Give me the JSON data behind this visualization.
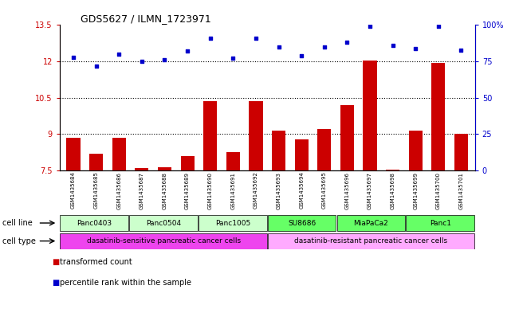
{
  "title": "GDS5627 / ILMN_1723971",
  "samples": [
    "GSM1435684",
    "GSM1435685",
    "GSM1435686",
    "GSM1435687",
    "GSM1435688",
    "GSM1435689",
    "GSM1435690",
    "GSM1435691",
    "GSM1435692",
    "GSM1435693",
    "GSM1435694",
    "GSM1435695",
    "GSM1435696",
    "GSM1435697",
    "GSM1435698",
    "GSM1435699",
    "GSM1435700",
    "GSM1435701"
  ],
  "bar_values": [
    8.85,
    8.2,
    8.85,
    7.6,
    7.65,
    8.1,
    10.35,
    8.25,
    10.35,
    9.15,
    8.8,
    9.2,
    10.2,
    12.05,
    7.55,
    9.15,
    11.95,
    9.0
  ],
  "dot_values": [
    78,
    72,
    80,
    75,
    76,
    82,
    91,
    77,
    91,
    85,
    79,
    85,
    88,
    99,
    86,
    84,
    99,
    83
  ],
  "bar_color": "#cc0000",
  "dot_color": "#0000cc",
  "ylim_left": [
    7.5,
    13.5
  ],
  "ylim_right": [
    0,
    100
  ],
  "yticks_left": [
    7.5,
    9.0,
    10.5,
    12.0,
    13.5
  ],
  "ytick_labels_left": [
    "7.5",
    "9",
    "10.5",
    "12",
    "13.5"
  ],
  "yticks_right": [
    0,
    25,
    50,
    75,
    100
  ],
  "ytick_labels_right": [
    "0",
    "25",
    "50",
    "75",
    "100%"
  ],
  "hlines": [
    9.0,
    10.5,
    12.0
  ],
  "cell_lines": [
    {
      "label": "Panc0403",
      "start": 0,
      "end": 3,
      "color": "#ccffcc"
    },
    {
      "label": "Panc0504",
      "start": 3,
      "end": 6,
      "color": "#ccffcc"
    },
    {
      "label": "Panc1005",
      "start": 6,
      "end": 9,
      "color": "#ccffcc"
    },
    {
      "label": "SU8686",
      "start": 9,
      "end": 12,
      "color": "#66ff66"
    },
    {
      "label": "MiaPaCa2",
      "start": 12,
      "end": 15,
      "color": "#66ff66"
    },
    {
      "label": "Panc1",
      "start": 15,
      "end": 18,
      "color": "#66ff66"
    }
  ],
  "cell_types": [
    {
      "label": "dasatinib-sensitive pancreatic cancer cells",
      "start": 0,
      "end": 9,
      "color": "#ee44ee"
    },
    {
      "label": "dasatinib-resistant pancreatic cancer cells",
      "start": 9,
      "end": 18,
      "color": "#ffaaff"
    }
  ],
  "legend_items": [
    {
      "color": "#cc0000",
      "label": "transformed count"
    },
    {
      "color": "#0000cc",
      "label": "percentile rank within the sample"
    }
  ],
  "cell_line_row_label": "cell line",
  "cell_type_row_label": "cell type",
  "bg_color": "#d3d3d3",
  "fig_width": 6.51,
  "fig_height": 3.93,
  "dpi": 100
}
